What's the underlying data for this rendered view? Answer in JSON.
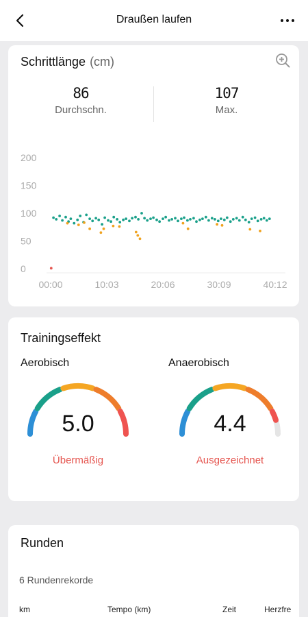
{
  "header": {
    "title": "Draußen laufen"
  },
  "stride": {
    "title": "Schrittlänge",
    "unit": "(cm)",
    "avg_value": "86",
    "avg_label": "Durchschn.",
    "max_value": "107",
    "max_label": "Max."
  },
  "chart_data": {
    "type": "scatter",
    "xlabel": "",
    "ylabel": "",
    "ylim": [
      0,
      200
    ],
    "xlim": [
      0,
      40.2
    ],
    "y_ticks": [
      "200",
      "150",
      "100",
      "50",
      "0"
    ],
    "x_ticks": [
      "00:00",
      "10:03",
      "20:06",
      "30:09",
      "40:12"
    ],
    "colors": {
      "green": "#1aa08a",
      "orange": "#f0a21e",
      "red": "#e5554f"
    },
    "series": [
      {
        "color": "green",
        "x": [
          0.5,
          1.0,
          1.6,
          2.1,
          2.7,
          3.2,
          3.6,
          4.2,
          4.8,
          5.3,
          5.9,
          6.4,
          7.0,
          7.5,
          8.1,
          8.6,
          9.2,
          9.7,
          10.3,
          10.8,
          11.3,
          11.9,
          12.4,
          13.0,
          13.5,
          14.1,
          14.6,
          15.2,
          15.7,
          16.3,
          16.8,
          17.3,
          17.9,
          18.4,
          19.0,
          19.5,
          20.1,
          20.6,
          21.2,
          21.7,
          22.3,
          22.8,
          23.4,
          23.9,
          24.5,
          25.0,
          25.6,
          26.1,
          26.7,
          27.2,
          27.8,
          28.3,
          28.9,
          29.4,
          30.0,
          30.5,
          31.1,
          31.6,
          32.2,
          32.7,
          33.3,
          33.8,
          34.4,
          34.9,
          35.5,
          36.0,
          36.6,
          37.1,
          37.7,
          38.2,
          38.7,
          39.2
        ],
        "y": [
          92,
          89,
          95,
          87,
          93,
          85,
          90,
          82,
          88,
          95,
          84,
          97,
          90,
          86,
          91,
          88,
          80,
          92,
          87,
          85,
          93,
          89,
          84,
          88,
          90,
          86,
          91,
          93,
          89,
          100,
          91,
          87,
          90,
          92,
          88,
          85,
          90,
          93,
          87,
          89,
          91,
          86,
          90,
          92,
          87,
          89,
          91,
          85,
          88,
          90,
          93,
          87,
          91,
          89,
          86,
          90,
          88,
          92,
          85,
          89,
          91,
          87,
          93,
          88,
          84,
          90,
          92,
          86,
          89,
          91,
          87,
          90
        ]
      },
      {
        "color": "orange",
        "x": [
          3.0,
          5.0,
          6.0,
          7.0,
          9.0,
          9.5,
          11.2,
          12.3,
          15.3,
          15.6,
          16.0,
          23.7,
          24.6,
          29.8,
          30.7,
          35.7,
          37.5
        ],
        "y": [
          82,
          79,
          83,
          72,
          65,
          72,
          77,
          76,
          66,
          60,
          54,
          82,
          72,
          80,
          78,
          71,
          68
        ]
      },
      {
        "color": "red",
        "x": [
          0.1
        ],
        "y": [
          1
        ]
      }
    ]
  },
  "training": {
    "title": "Trainingseffekt",
    "aerobic_label": "Aerobisch",
    "aerobic_value": "5.0",
    "aerobic_level": 5.0,
    "aerobic_status": "Übermäßig",
    "anaerobic_label": "Anaerobisch",
    "anaerobic_value": "4.4",
    "anaerobic_level": 4.4,
    "anaerobic_status": "Ausgezeichnet",
    "scale_max": 5,
    "colors": [
      "#2d8fd6",
      "#1aa08a",
      "#f5a623",
      "#ee7d2b",
      "#ef5350"
    ],
    "track_color": "#e5e5e5"
  },
  "laps": {
    "title": "Runden",
    "subtitle": "6 Rundenrekorde",
    "col_km": "km",
    "col_pace": "Tempo (km)",
    "col_time": "Zeit",
    "col_hr": "Herzfre"
  }
}
